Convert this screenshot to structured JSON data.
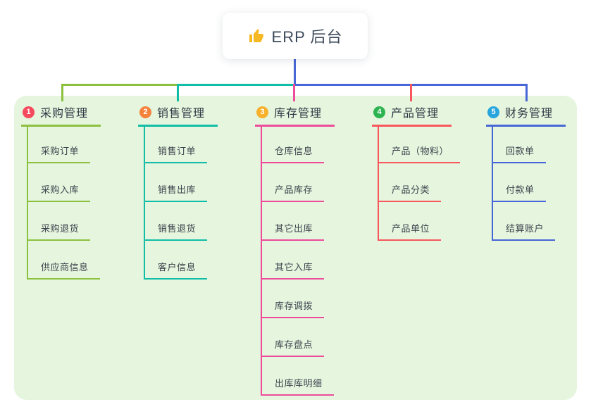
{
  "root": {
    "label": "ERP 后台",
    "icon": "thumbs-up",
    "icon_color": "#f6b923"
  },
  "panel": {
    "bg": "#e5f5de"
  },
  "connectors": {
    "root_line_color": "#4867d6"
  },
  "branches": [
    {
      "index": "1",
      "label": "采购管理",
      "badge_color": "#f54a5e",
      "line_color": "#8cc140",
      "children": [
        "采购订单",
        "采购入库",
        "采购退货",
        "供应商信息"
      ]
    },
    {
      "index": "2",
      "label": "销售管理",
      "badge_color": "#f5823b",
      "line_color": "#10bda6",
      "children": [
        "销售订单",
        "销售出库",
        "销售退货",
        "客户信息"
      ]
    },
    {
      "index": "3",
      "label": "库存管理",
      "badge_color": "#f9b12c",
      "line_color": "#ed4c9b",
      "children": [
        "仓库信息",
        "产品库存",
        "其它出库",
        "其它入库",
        "库存调拨",
        "库存盘点",
        "出库库明细"
      ]
    },
    {
      "index": "4",
      "label": "产品管理",
      "badge_color": "#2db450",
      "line_color": "#f8575e",
      "children": [
        "产品（物料）",
        "产品分类",
        "产品单位"
      ]
    },
    {
      "index": "5",
      "label": "财务管理",
      "badge_color": "#28a5dd",
      "line_color": "#4867d6",
      "children": [
        "回款单",
        "付款单",
        "结算账户"
      ]
    }
  ]
}
